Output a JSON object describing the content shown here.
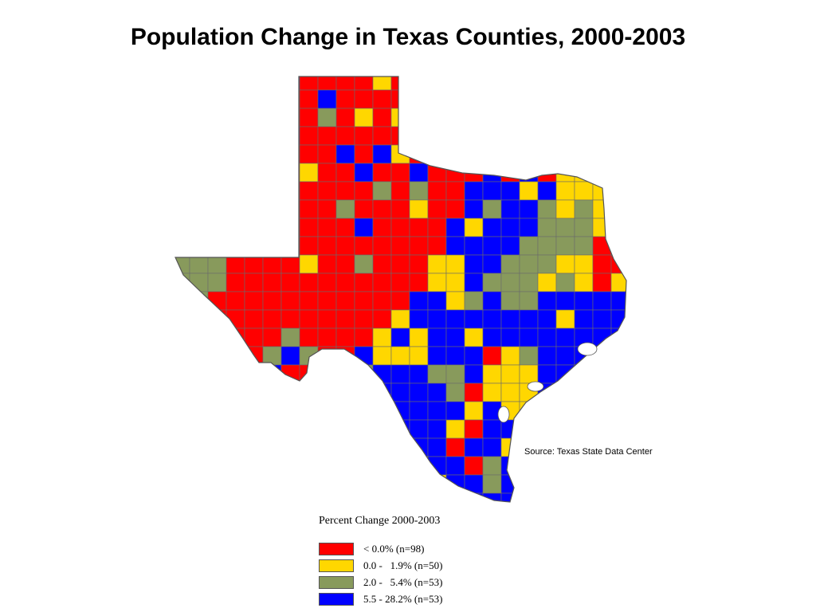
{
  "title": "Population Change in Texas Counties, 2000-2003",
  "source": "Source: Texas State Data Center",
  "legend": {
    "title": "Percent Change 2000-2003",
    "items": [
      {
        "label": "< 0.0% (n=98)",
        "color": "#ff0000"
      },
      {
        "label": "0.0 -   1.9% (n=50)",
        "color": "#ffd700"
      },
      {
        "label": "2.0 -   5.4% (n=53)",
        "color": "#889a5c"
      },
      {
        "label": "5.5 - 28.2% (n=53)",
        "color": "#0000ff"
      }
    ]
  },
  "colors": {
    "red": "#ff0000",
    "yellow": "#ffd700",
    "green": "#889a5c",
    "blue": "#0000ff",
    "border": "#6b6b6b",
    "water": "#ffffff"
  }
}
